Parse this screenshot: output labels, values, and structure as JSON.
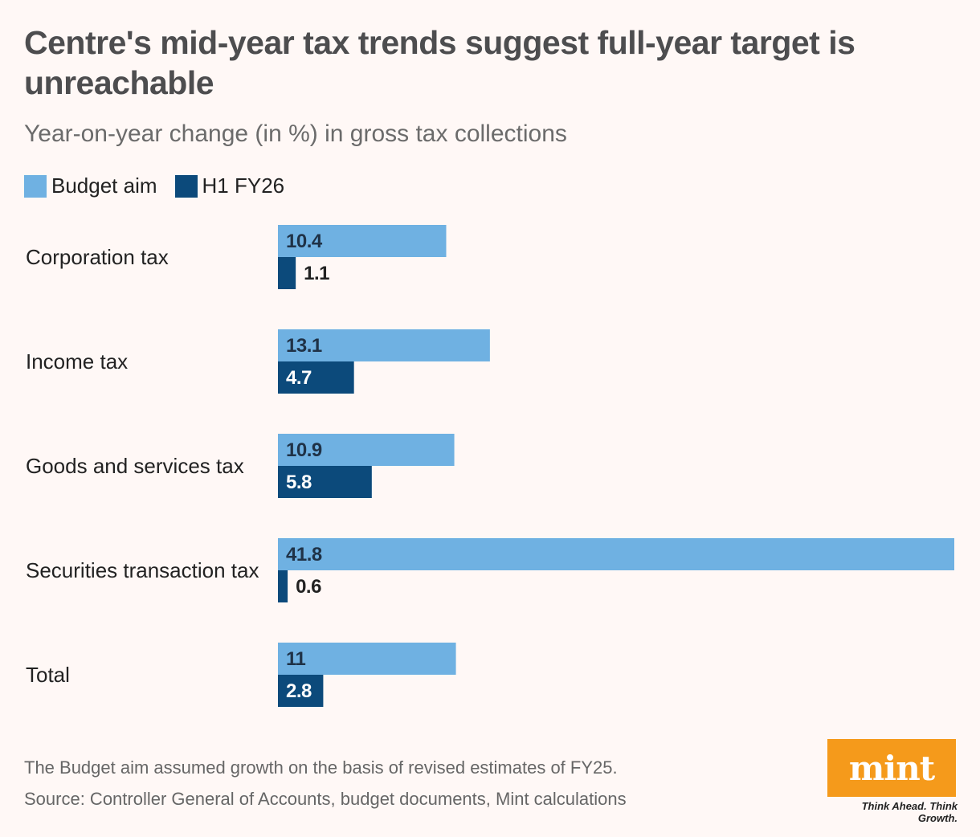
{
  "chart_data": {
    "type": "bar",
    "orientation": "horizontal",
    "title": "Centre's mid-year tax trends suggest full-year target is unreachable",
    "subtitle": "Year-on-year change (in %) in gross tax collections",
    "categories": [
      "Corporation tax",
      "Income tax",
      "Goods and services tax",
      "Securities transaction tax",
      "Total"
    ],
    "series": [
      {
        "name": "Budget aim",
        "color": "#6fb1e2",
        "values": [
          10.4,
          13.1,
          10.9,
          41.8,
          11
        ]
      },
      {
        "name": "H1 FY26",
        "color": "#0c4a7b",
        "values": [
          1.1,
          4.7,
          5.8,
          0.6,
          2.8
        ]
      }
    ],
    "value_labels": [
      [
        "10.4",
        "13.1",
        "10.9",
        "41.8",
        "11"
      ],
      [
        "1.1",
        "4.7",
        "5.8",
        "0.6",
        "2.8"
      ]
    ],
    "xlim": [
      0,
      41.8
    ],
    "grid": false,
    "legend_position": "top-left"
  },
  "notes": {
    "footnote": "The Budget aim assumed growth on the basis of revised estimates of FY25.",
    "source": "Source: Controller General of Accounts, budget documents, Mint calculations"
  },
  "branding": {
    "logo_text": "mint",
    "tagline": "Think Ahead. Think Growth.",
    "logo_color": "#f59a1b"
  },
  "colors": {
    "background": "#fff8f6",
    "title": "#4d4d4f"
  }
}
